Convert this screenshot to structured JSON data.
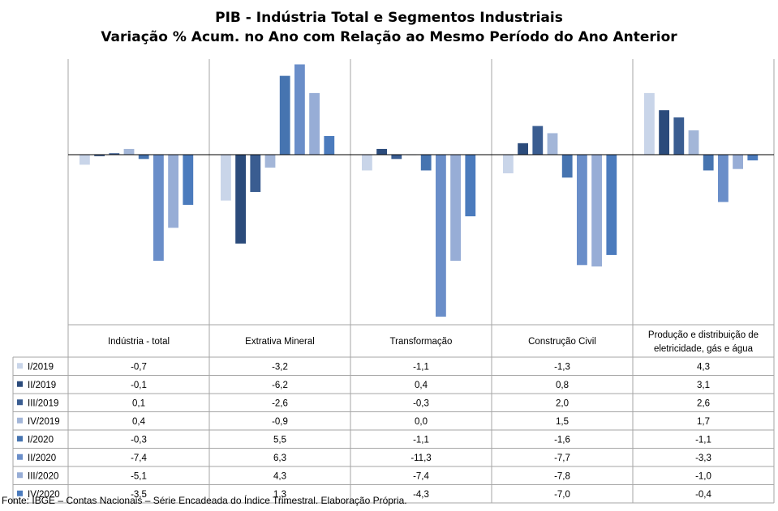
{
  "chart_data": {
    "type": "bar",
    "title": "PIB - Indústria Total e Segmentos Industriais",
    "subtitle": "Variação % Acum. no Ano com Relação ao Mesmo Período do Ano Anterior",
    "categories": [
      [
        "Indústria - total"
      ],
      [
        "Extrativa Mineral"
      ],
      [
        "Transformação"
      ],
      [
        "Construção Civil"
      ],
      [
        "Produção e distribuição de",
        "eletricidade, gás e água"
      ]
    ],
    "series": [
      {
        "name": "I/2019",
        "color": "#c9d5e9",
        "values": [
          -0.7,
          -3.2,
          -1.1,
          -1.3,
          4.3
        ],
        "labels": [
          "-0,7",
          "-3,2",
          "-1,1",
          "-1,3",
          "4,3"
        ]
      },
      {
        "name": "II/2019",
        "color": "#2b4b7b",
        "values": [
          -0.1,
          -6.2,
          0.4,
          0.8,
          3.1
        ],
        "labels": [
          "-0,1",
          "-6,2",
          "0,4",
          "0,8",
          "3,1"
        ]
      },
      {
        "name": "III/2019",
        "color": "#3a5d91",
        "values": [
          0.1,
          -2.6,
          -0.3,
          2.0,
          2.6
        ],
        "labels": [
          "0,1",
          "-2,6",
          "-0,3",
          "2,0",
          "2,6"
        ]
      },
      {
        "name": "IV/2019",
        "color": "#a3b6d8",
        "values": [
          0.4,
          -0.9,
          0.0,
          1.5,
          1.7
        ],
        "labels": [
          "0,4",
          "-0,9",
          "0,0",
          "1,5",
          "1,7"
        ]
      },
      {
        "name": "I/2020",
        "color": "#4674b0",
        "values": [
          -0.3,
          5.5,
          -1.1,
          -1.6,
          -1.1
        ],
        "labels": [
          "-0,3",
          "5,5",
          "-1,1",
          "-1,6",
          "-1,1"
        ]
      },
      {
        "name": "II/2020",
        "color": "#6a8ec9",
        "values": [
          -7.4,
          6.3,
          -11.3,
          -7.7,
          -3.3
        ],
        "labels": [
          "-7,4",
          "6,3",
          "-11,3",
          "-7,7",
          "-3,3"
        ]
      },
      {
        "name": "III/2020",
        "color": "#97add6",
        "values": [
          -5.1,
          4.3,
          -7.4,
          -7.8,
          -1.0
        ],
        "labels": [
          "-5,1",
          "4,3",
          "-7,4",
          "-7,8",
          "-1,0"
        ]
      },
      {
        "name": "IV/2020",
        "color": "#4b7bbd",
        "values": [
          -3.5,
          1.3,
          -4.3,
          -7.0,
          -0.4
        ],
        "labels": [
          "-3,5",
          "1,3",
          "-4,3",
          "-7,0",
          "-0,4"
        ]
      }
    ],
    "ylim": [
      -11.3,
      6.3
    ],
    "legend": "data-table-left",
    "grid": false
  },
  "source": "Fonte: IBGE – Contas Nacionais – Série Encadeada do Índice Trimestral. Elaboração Própria."
}
